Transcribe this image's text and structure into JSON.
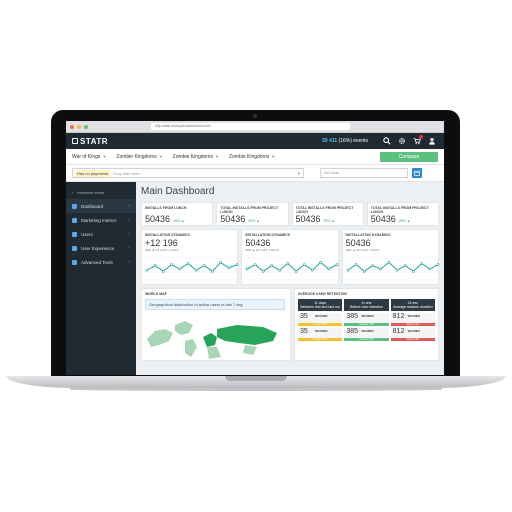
{
  "browser": {
    "url": "http://statr.example/dashboard/main"
  },
  "header": {
    "logo": "STATR",
    "events_count": "59 411",
    "events_delta": "(16%)",
    "events_label": "events"
  },
  "game_tabs": [
    {
      "label": "War of Kings"
    },
    {
      "label": "Zombie Kingdoms"
    },
    {
      "label": "Zombie Kingdoms"
    },
    {
      "label": "Zombie Kingdoms"
    }
  ],
  "compare_label": "Compare",
  "filters": {
    "tag": "Has no payments",
    "tag_placeholder": "Drop filter here",
    "date_placeholder": "Set date"
  },
  "sidebar": {
    "minimize_label": "minimize menu",
    "items": [
      {
        "label": "Dashboard"
      },
      {
        "label": "Marketing metrics"
      },
      {
        "label": "Users"
      },
      {
        "label": "User Experience"
      },
      {
        "label": "Advanced Tools"
      }
    ]
  },
  "page_title": "Main Dashboard",
  "kpis": [
    {
      "label": "INSTALLS FROM LUNCH",
      "value": "50436",
      "delta": "28% ▲"
    },
    {
      "label": "TOTAL INSTALLS FROM PROJECT LUNCH",
      "value": "50436",
      "delta": "28% ▲"
    },
    {
      "label": "TOTAL INSTALLS FROM PROJECT LUNCH",
      "value": "50436",
      "delta": "28% ▲"
    },
    {
      "label": "TOTAL INSTALLS FROM PROJECT LUNCH",
      "value": "50436",
      "delta": "28% ▲"
    }
  ],
  "charts": [
    {
      "title": "INSTALLATION DYNAMICS",
      "value": "+12 196",
      "sub": "28% ▲",
      "sub2": "AT LAST 7 DAYS",
      "points": [
        0.55,
        0.35,
        0.6,
        0.3,
        0.5,
        0.25,
        0.55,
        0.35,
        0.6,
        0.2,
        0.45,
        0.3
      ]
    },
    {
      "title": "INSTALLATION DYNAMICS",
      "value": "50436",
      "sub": "28% ▲",
      "sub2": "AT LAST 7 DAYS",
      "points": [
        0.5,
        0.3,
        0.6,
        0.35,
        0.55,
        0.25,
        0.6,
        0.3,
        0.55,
        0.2,
        0.5,
        0.3
      ]
    },
    {
      "title": "INSTALLATION DYNAMICS",
      "value": "50436",
      "sub": "28% ▲",
      "sub2": "AT LAST 7 DAYS",
      "points": [
        0.55,
        0.3,
        0.6,
        0.35,
        0.5,
        0.2,
        0.55,
        0.35,
        0.6,
        0.25,
        0.5,
        0.3
      ]
    }
  ],
  "world_map": {
    "title": "WORLD MAP",
    "info": "Geographical distribution of active users in last 7 day"
  },
  "retention": {
    "title": "AVERAGE USER RETENTION",
    "headers": [
      {
        "top": "11 days",
        "bottom": "Between first and last run"
      },
      {
        "top": "4 runs",
        "bottom": "Before user retention"
      },
      {
        "top": "24 sec",
        "bottom": "Average session duration"
      }
    ],
    "rows": [
      [
        {
          "value": "35",
          "label": "SECONDS",
          "bar": "medium 49%",
          "bar_color": "#f5c12e"
        },
        {
          "value": "385",
          "label": "SECONDS",
          "bar": "medium 70%",
          "bar_color": "#5cc07f"
        },
        {
          "value": "812",
          "label": "SECONDS",
          "bar": "below 15%",
          "bar_color": "#e05a5a"
        }
      ],
      [
        {
          "value": "35",
          "label": "SECONDS",
          "bar": "medium 49%",
          "bar_color": "#f5c12e"
        },
        {
          "value": "385",
          "label": "SECONDS",
          "bar": "medium 70%",
          "bar_color": "#5cc07f"
        },
        {
          "value": "812",
          "label": "SECONDS",
          "bar": "below 15%",
          "bar_color": "#e05a5a"
        }
      ]
    ]
  },
  "colors": {
    "accent": "#5cc07f",
    "sidebar": "#1f2a33",
    "chart_line": "#26a69a",
    "map_active": "#27a35a"
  }
}
